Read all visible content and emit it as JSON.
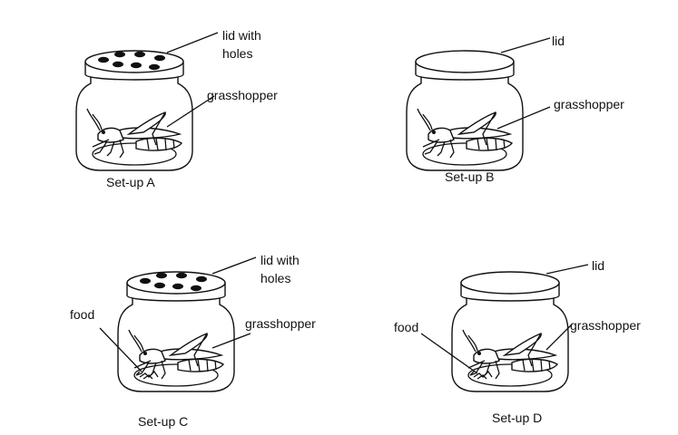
{
  "setups": [
    {
      "id": "A",
      "caption": "Set-up A",
      "lid_label_line1": "lid with",
      "lid_label_line2": "holes",
      "animal_label": "grasshopper",
      "lid_has_holes": true,
      "has_food": false
    },
    {
      "id": "B",
      "caption": "Set-up B",
      "lid_label_line1": "lid",
      "lid_label_line2": "",
      "animal_label": "grasshopper",
      "lid_has_holes": false,
      "has_food": false
    },
    {
      "id": "C",
      "caption": "Set-up C",
      "lid_label_line1": "lid with",
      "lid_label_line2": "holes",
      "animal_label": "grasshopper",
      "food_label": "food",
      "lid_has_holes": true,
      "has_food": true
    },
    {
      "id": "D",
      "caption": "Set-up D",
      "lid_label_line1": "lid",
      "lid_label_line2": "",
      "animal_label": "grasshopper",
      "food_label": "food",
      "lid_has_holes": false,
      "has_food": true
    }
  ]
}
